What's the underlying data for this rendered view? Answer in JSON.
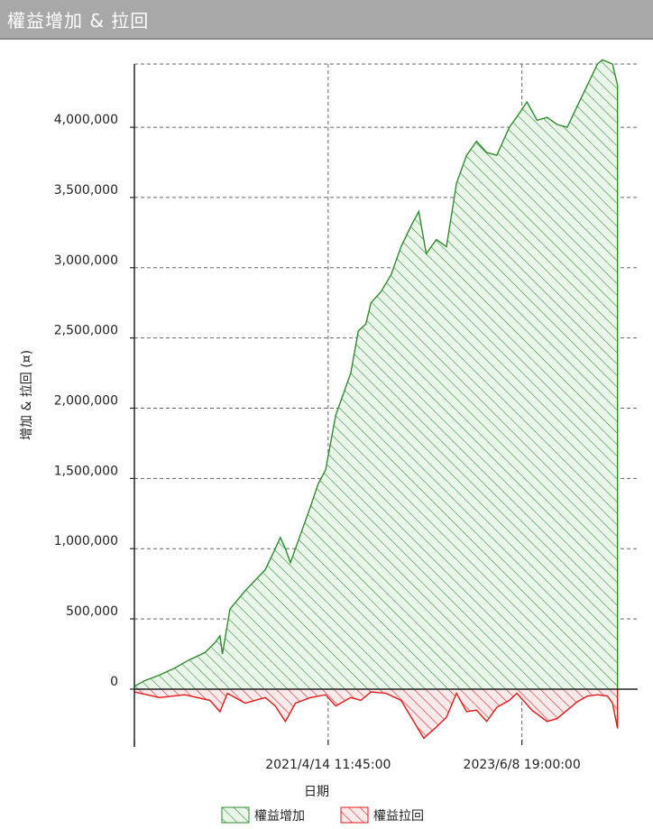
{
  "window": {
    "title": "權益增加 & 拉回"
  },
  "chart_data": {
    "type": "area",
    "xlabel": "日期",
    "ylabel": "增加 & 拉回 (¤)",
    "ylim": [
      -360000,
      4450000
    ],
    "yticks": [
      {
        "value": 0,
        "label": "0"
      },
      {
        "value": 500000,
        "label": "500,000"
      },
      {
        "value": 1000000,
        "label": "1,000,000"
      },
      {
        "value": 1500000,
        "label": "1,500,000"
      },
      {
        "value": 2000000,
        "label": "2,000,000"
      },
      {
        "value": 2500000,
        "label": "2,500,000"
      },
      {
        "value": 3000000,
        "label": "3,000,000"
      },
      {
        "value": 3500000,
        "label": "3,500,000"
      },
      {
        "value": 4000000,
        "label": "4,000,000"
      }
    ],
    "xticks": [
      {
        "pos": 0.385,
        "label": "2021/4/14 11:45:00"
      },
      {
        "pos": 0.77,
        "label": "2023/6/8 19:00:00"
      }
    ],
    "grid": true,
    "legend_position": "bottom",
    "series": [
      {
        "name": "權益增加",
        "color": "#2e8b2e",
        "points": [
          [
            0.0,
            20000
          ],
          [
            0.02,
            60000
          ],
          [
            0.05,
            100000
          ],
          [
            0.08,
            150000
          ],
          [
            0.11,
            210000
          ],
          [
            0.14,
            260000
          ],
          [
            0.16,
            330000
          ],
          [
            0.17,
            380000
          ],
          [
            0.175,
            250000
          ],
          [
            0.19,
            570000
          ],
          [
            0.22,
            700000
          ],
          [
            0.26,
            850000
          ],
          [
            0.28,
            1000000
          ],
          [
            0.29,
            1080000
          ],
          [
            0.3,
            1000000
          ],
          [
            0.31,
            900000
          ],
          [
            0.33,
            1100000
          ],
          [
            0.35,
            1300000
          ],
          [
            0.365,
            1460000
          ],
          [
            0.38,
            1560000
          ],
          [
            0.4,
            1950000
          ],
          [
            0.43,
            2250000
          ],
          [
            0.445,
            2550000
          ],
          [
            0.46,
            2600000
          ],
          [
            0.47,
            2750000
          ],
          [
            0.49,
            2830000
          ],
          [
            0.51,
            2950000
          ],
          [
            0.53,
            3150000
          ],
          [
            0.55,
            3300000
          ],
          [
            0.565,
            3400000
          ],
          [
            0.58,
            3100000
          ],
          [
            0.6,
            3200000
          ],
          [
            0.62,
            3150000
          ],
          [
            0.64,
            3600000
          ],
          [
            0.66,
            3800000
          ],
          [
            0.68,
            3900000
          ],
          [
            0.7,
            3820000
          ],
          [
            0.72,
            3800000
          ],
          [
            0.745,
            4000000
          ],
          [
            0.765,
            4100000
          ],
          [
            0.78,
            4180000
          ],
          [
            0.8,
            4050000
          ],
          [
            0.82,
            4070000
          ],
          [
            0.84,
            4020000
          ],
          [
            0.86,
            4000000
          ],
          [
            0.88,
            4150000
          ],
          [
            0.9,
            4300000
          ],
          [
            0.92,
            4450000
          ],
          [
            0.93,
            4480000
          ],
          [
            0.95,
            4450000
          ],
          [
            0.96,
            4300000
          ]
        ]
      },
      {
        "name": "權益拉回",
        "color": "#e01818",
        "points": [
          [
            0.0,
            -20000
          ],
          [
            0.05,
            -60000
          ],
          [
            0.1,
            -40000
          ],
          [
            0.15,
            -80000
          ],
          [
            0.17,
            -160000
          ],
          [
            0.185,
            -30000
          ],
          [
            0.22,
            -100000
          ],
          [
            0.26,
            -60000
          ],
          [
            0.28,
            -120000
          ],
          [
            0.3,
            -230000
          ],
          [
            0.32,
            -100000
          ],
          [
            0.35,
            -60000
          ],
          [
            0.38,
            -40000
          ],
          [
            0.4,
            -120000
          ],
          [
            0.43,
            -60000
          ],
          [
            0.45,
            -80000
          ],
          [
            0.47,
            -20000
          ],
          [
            0.5,
            -30000
          ],
          [
            0.53,
            -80000
          ],
          [
            0.55,
            -200000
          ],
          [
            0.575,
            -350000
          ],
          [
            0.6,
            -270000
          ],
          [
            0.62,
            -200000
          ],
          [
            0.64,
            -30000
          ],
          [
            0.66,
            -160000
          ],
          [
            0.68,
            -150000
          ],
          [
            0.7,
            -230000
          ],
          [
            0.72,
            -130000
          ],
          [
            0.745,
            -80000
          ],
          [
            0.76,
            -30000
          ],
          [
            0.79,
            -150000
          ],
          [
            0.82,
            -230000
          ],
          [
            0.84,
            -210000
          ],
          [
            0.86,
            -150000
          ],
          [
            0.88,
            -90000
          ],
          [
            0.9,
            -50000
          ],
          [
            0.92,
            -40000
          ],
          [
            0.94,
            -50000
          ],
          [
            0.95,
            -100000
          ],
          [
            0.96,
            -280000
          ]
        ]
      }
    ]
  }
}
